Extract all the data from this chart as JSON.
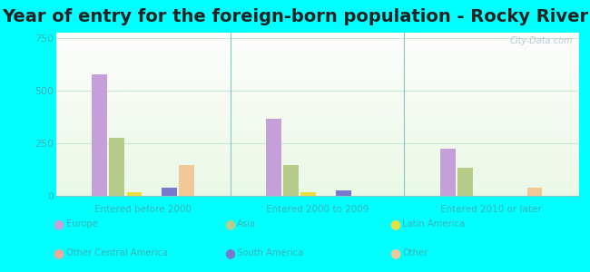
{
  "title": "Year of entry for the foreign-born population - Rocky River",
  "categories": [
    "Entered before 2000",
    "Entered 2000 to 2009",
    "Entered 2010 or later"
  ],
  "series": [
    {
      "name": "Europe",
      "color": "#c49fd8",
      "values": [
        575,
        365,
        225
      ]
    },
    {
      "name": "Asia",
      "color": "#b8cc8a",
      "values": [
        275,
        145,
        135
      ]
    },
    {
      "name": "Latin America",
      "color": "#e8e040",
      "values": [
        18,
        18,
        0
      ]
    },
    {
      "name": "Other Central America",
      "color": "#f0a898",
      "values": [
        0,
        0,
        0
      ]
    },
    {
      "name": "South America",
      "color": "#7878cc",
      "values": [
        40,
        25,
        0
      ]
    },
    {
      "name": "Other",
      "color": "#f0c898",
      "values": [
        145,
        0,
        40
      ]
    }
  ],
  "ylim": [
    0,
    775
  ],
  "yticks": [
    0,
    250,
    500,
    750
  ],
  "outer_bg": "#00ffff",
  "plot_bg_top": "#e8f8e8",
  "plot_bg_bottom": "#f5fff5",
  "title_fontsize": 14,
  "tick_color": "#40b0b8",
  "watermark": "City-Data.com",
  "grid_color": "#c8e8d0",
  "separator_color": "#80c8c0"
}
